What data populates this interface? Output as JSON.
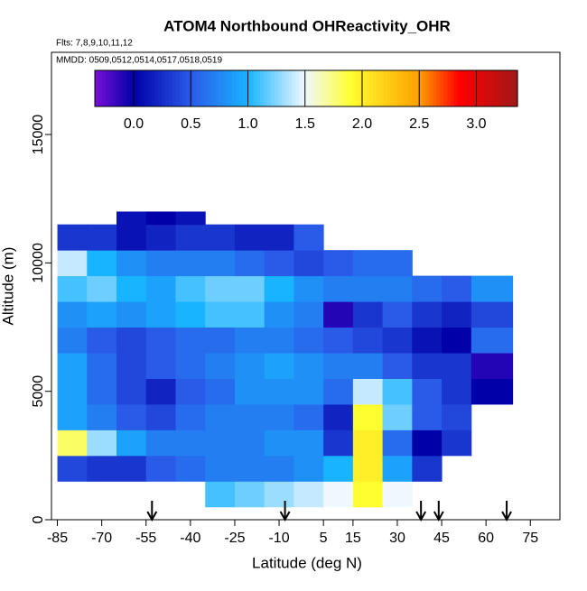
{
  "chart_data": {
    "type": "heatmap",
    "title": "ATOM4 Northbound OHReactivity_OHR",
    "subtitle": "Flts: 7,8,9,10,11,12",
    "annotation": "MMDD: 0509,0512,0514,0517,0518,0519",
    "x_label": "Latitude (deg N)",
    "y_label": "Altitude (m)",
    "xlim": [
      -87,
      85
    ],
    "xticks": [
      -85,
      -70,
      -55,
      -40,
      -25,
      -10,
      5,
      15,
      30,
      45,
      60,
      75
    ],
    "ylim": [
      0,
      18200
    ],
    "yticks": [
      0,
      5000,
      10000,
      15000
    ],
    "lat_bins": [
      -85,
      -75,
      -65,
      -55,
      -45,
      -35,
      -25,
      -15,
      -5,
      5,
      15,
      25,
      35,
      45,
      55,
      69
    ],
    "alt_bins": [
      500,
      1500,
      2500,
      3500,
      4500,
      5500,
      6500,
      7500,
      8500,
      9500,
      10500,
      11500,
      12000
    ],
    "values": [
      [
        null,
        null,
        null,
        null,
        null,
        1.1,
        1.2,
        1.3,
        1.4,
        1.5,
        1.9,
        1.5,
        null,
        null,
        null
      ],
      [
        0.4,
        0.3,
        0.3,
        0.5,
        0.6,
        0.7,
        0.7,
        0.7,
        0.8,
        1.0,
        2.0,
        0.9,
        0.3,
        null,
        null
      ],
      [
        1.8,
        1.3,
        0.9,
        0.7,
        0.7,
        0.7,
        0.7,
        0.8,
        0.8,
        0.3,
        2.0,
        0.6,
        0.0,
        0.3,
        null
      ],
      [
        0.9,
        0.7,
        0.5,
        0.4,
        0.6,
        0.7,
        0.7,
        0.7,
        0.6,
        0.2,
        1.9,
        1.2,
        0.5,
        0.4,
        null
      ],
      [
        0.9,
        0.6,
        0.4,
        0.2,
        0.5,
        0.6,
        0.8,
        0.8,
        0.8,
        0.6,
        1.4,
        1.1,
        0.5,
        0.3,
        0.0
      ],
      [
        0.9,
        0.6,
        0.4,
        0.5,
        0.6,
        0.7,
        0.8,
        0.9,
        0.8,
        0.7,
        0.7,
        0.5,
        0.3,
        0.3,
        -0.1
      ],
      [
        0.7,
        0.5,
        0.4,
        0.5,
        0.6,
        0.6,
        0.7,
        0.7,
        0.6,
        0.5,
        0.4,
        0.3,
        0.1,
        0.0,
        0.6
      ],
      [
        0.8,
        0.9,
        0.8,
        0.9,
        1.0,
        1.1,
        1.1,
        0.8,
        0.7,
        -0.1,
        0.3,
        0.5,
        0.3,
        0.2,
        0.4
      ],
      [
        1.1,
        1.2,
        1.0,
        0.9,
        1.1,
        1.2,
        1.2,
        1.0,
        0.8,
        0.7,
        0.7,
        0.7,
        0.6,
        0.5,
        0.8
      ],
      [
        1.4,
        1.0,
        0.8,
        0.7,
        0.7,
        0.7,
        0.6,
        0.5,
        0.4,
        0.5,
        0.6,
        0.6,
        null,
        null,
        null
      ],
      [
        0.3,
        0.3,
        0.1,
        0.2,
        0.3,
        0.3,
        0.2,
        0.2,
        0.5,
        null,
        null,
        null,
        null,
        null,
        null
      ],
      [
        null,
        null,
        0.1,
        0.0,
        0.1,
        null,
        null,
        null,
        null,
        null,
        null,
        null,
        null,
        null,
        null
      ]
    ],
    "clim": [
      -0.34,
      3.36
    ],
    "cbticks": [
      {
        "value": 0,
        "label": "0.0"
      },
      {
        "value": 0.5,
        "label": "0.5"
      },
      {
        "value": 1,
        "label": "1.0"
      },
      {
        "value": 1.5,
        "label": "1.5"
      },
      {
        "value": 2,
        "label": "2.0"
      },
      {
        "value": 2.5,
        "label": "2.5"
      },
      {
        "value": 3,
        "label": "3.0"
      }
    ],
    "colorscale": [
      [
        -0.34,
        "#7a10d8"
      ],
      [
        0,
        "#0000a8"
      ],
      [
        0.5,
        "#2a5ae8"
      ],
      [
        1,
        "#18b4ff"
      ],
      [
        1.5,
        "#f0f8ff"
      ],
      [
        1.9,
        "#ffff30"
      ],
      [
        2.5,
        "#ffa000"
      ],
      [
        2.85,
        "#ff0000"
      ],
      [
        3.36,
        "#a01818"
      ]
    ],
    "arrows_lat": [
      -53,
      -8,
      38,
      44,
      67
    ]
  }
}
